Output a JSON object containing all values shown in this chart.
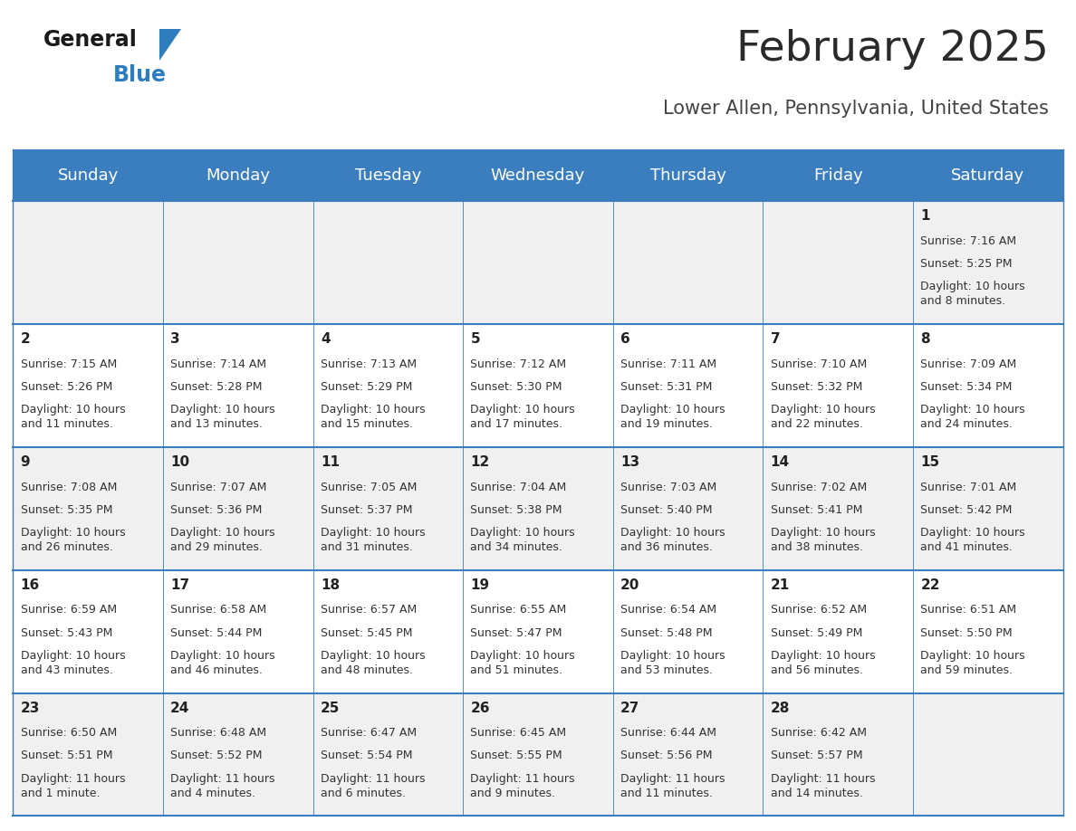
{
  "title": "February 2025",
  "subtitle": "Lower Allen, Pennsylvania, United States",
  "days_of_week": [
    "Sunday",
    "Monday",
    "Tuesday",
    "Wednesday",
    "Thursday",
    "Friday",
    "Saturday"
  ],
  "header_bg": "#3a7ebf",
  "header_text": "#ffffff",
  "cell_bg_odd": "#f0f0f0",
  "cell_bg_even": "#ffffff",
  "cell_border": "#3a7ebf",
  "day_number_color": "#222222",
  "info_text_color": "#333333",
  "title_color": "#2a2a2a",
  "subtitle_color": "#444444",
  "logo_general_color": "#1a1a1a",
  "logo_blue_color": "#2e7dbf",
  "calendar_data": [
    [
      null,
      null,
      null,
      null,
      null,
      null,
      {
        "day": "1",
        "sunrise": "7:16 AM",
        "sunset": "5:25 PM",
        "daylight": "10 hours\nand 8 minutes."
      }
    ],
    [
      {
        "day": "2",
        "sunrise": "7:15 AM",
        "sunset": "5:26 PM",
        "daylight": "10 hours\nand 11 minutes."
      },
      {
        "day": "3",
        "sunrise": "7:14 AM",
        "sunset": "5:28 PM",
        "daylight": "10 hours\nand 13 minutes."
      },
      {
        "day": "4",
        "sunrise": "7:13 AM",
        "sunset": "5:29 PM",
        "daylight": "10 hours\nand 15 minutes."
      },
      {
        "day": "5",
        "sunrise": "7:12 AM",
        "sunset": "5:30 PM",
        "daylight": "10 hours\nand 17 minutes."
      },
      {
        "day": "6",
        "sunrise": "7:11 AM",
        "sunset": "5:31 PM",
        "daylight": "10 hours\nand 19 minutes."
      },
      {
        "day": "7",
        "sunrise": "7:10 AM",
        "sunset": "5:32 PM",
        "daylight": "10 hours\nand 22 minutes."
      },
      {
        "day": "8",
        "sunrise": "7:09 AM",
        "sunset": "5:34 PM",
        "daylight": "10 hours\nand 24 minutes."
      }
    ],
    [
      {
        "day": "9",
        "sunrise": "7:08 AM",
        "sunset": "5:35 PM",
        "daylight": "10 hours\nand 26 minutes."
      },
      {
        "day": "10",
        "sunrise": "7:07 AM",
        "sunset": "5:36 PM",
        "daylight": "10 hours\nand 29 minutes."
      },
      {
        "day": "11",
        "sunrise": "7:05 AM",
        "sunset": "5:37 PM",
        "daylight": "10 hours\nand 31 minutes."
      },
      {
        "day": "12",
        "sunrise": "7:04 AM",
        "sunset": "5:38 PM",
        "daylight": "10 hours\nand 34 minutes."
      },
      {
        "day": "13",
        "sunrise": "7:03 AM",
        "sunset": "5:40 PM",
        "daylight": "10 hours\nand 36 minutes."
      },
      {
        "day": "14",
        "sunrise": "7:02 AM",
        "sunset": "5:41 PM",
        "daylight": "10 hours\nand 38 minutes."
      },
      {
        "day": "15",
        "sunrise": "7:01 AM",
        "sunset": "5:42 PM",
        "daylight": "10 hours\nand 41 minutes."
      }
    ],
    [
      {
        "day": "16",
        "sunrise": "6:59 AM",
        "sunset": "5:43 PM",
        "daylight": "10 hours\nand 43 minutes."
      },
      {
        "day": "17",
        "sunrise": "6:58 AM",
        "sunset": "5:44 PM",
        "daylight": "10 hours\nand 46 minutes."
      },
      {
        "day": "18",
        "sunrise": "6:57 AM",
        "sunset": "5:45 PM",
        "daylight": "10 hours\nand 48 minutes."
      },
      {
        "day": "19",
        "sunrise": "6:55 AM",
        "sunset": "5:47 PM",
        "daylight": "10 hours\nand 51 minutes."
      },
      {
        "day": "20",
        "sunrise": "6:54 AM",
        "sunset": "5:48 PM",
        "daylight": "10 hours\nand 53 minutes."
      },
      {
        "day": "21",
        "sunrise": "6:52 AM",
        "sunset": "5:49 PM",
        "daylight": "10 hours\nand 56 minutes."
      },
      {
        "day": "22",
        "sunrise": "6:51 AM",
        "sunset": "5:50 PM",
        "daylight": "10 hours\nand 59 minutes."
      }
    ],
    [
      {
        "day": "23",
        "sunrise": "6:50 AM",
        "sunset": "5:51 PM",
        "daylight": "11 hours\nand 1 minute."
      },
      {
        "day": "24",
        "sunrise": "6:48 AM",
        "sunset": "5:52 PM",
        "daylight": "11 hours\nand 4 minutes."
      },
      {
        "day": "25",
        "sunrise": "6:47 AM",
        "sunset": "5:54 PM",
        "daylight": "11 hours\nand 6 minutes."
      },
      {
        "day": "26",
        "sunrise": "6:45 AM",
        "sunset": "5:55 PM",
        "daylight": "11 hours\nand 9 minutes."
      },
      {
        "day": "27",
        "sunrise": "6:44 AM",
        "sunset": "5:56 PM",
        "daylight": "11 hours\nand 11 minutes."
      },
      {
        "day": "28",
        "sunrise": "6:42 AM",
        "sunset": "5:57 PM",
        "daylight": "11 hours\nand 14 minutes."
      },
      null
    ]
  ],
  "figsize": [
    11.88,
    9.18
  ],
  "dpi": 100,
  "header_fontsize": 13,
  "day_num_fontsize": 11,
  "info_fontsize": 9,
  "title_fontsize": 34,
  "subtitle_fontsize": 15
}
